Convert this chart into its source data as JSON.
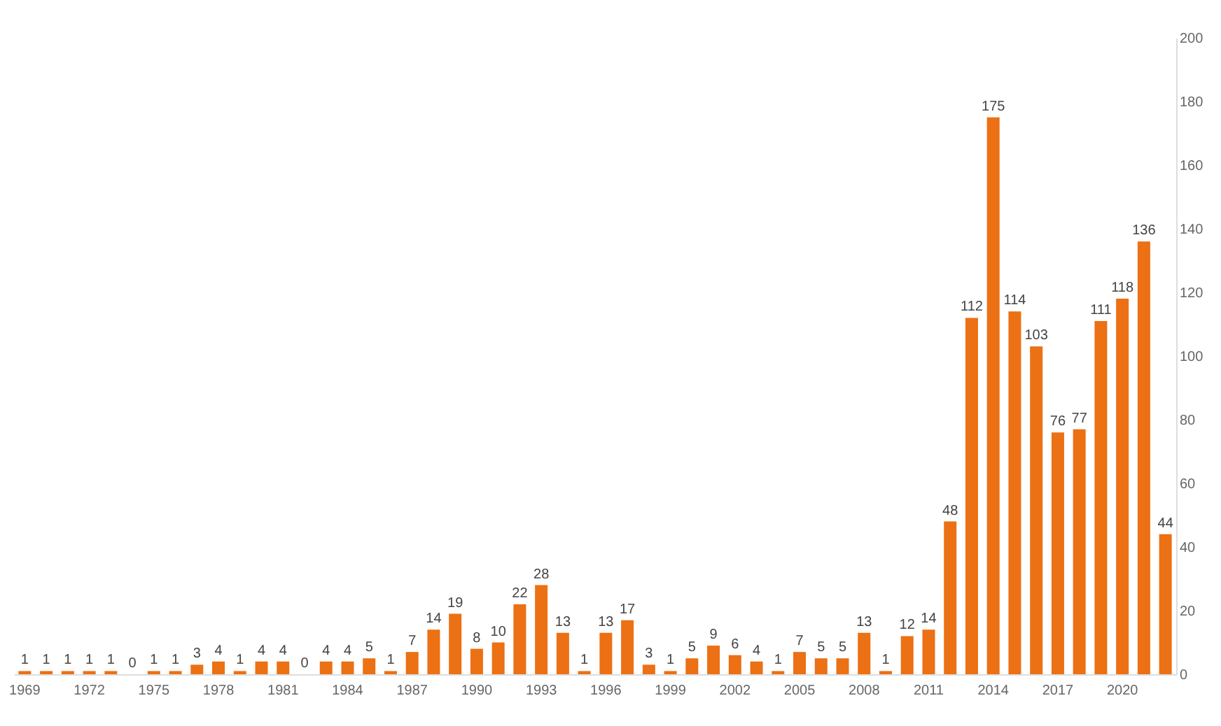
{
  "chart_data": {
    "type": "bar",
    "categories": [
      "1969",
      null,
      null,
      "1972",
      null,
      null,
      "1975",
      null,
      null,
      "1978",
      null,
      null,
      "1981",
      null,
      null,
      "1984",
      null,
      null,
      "1987",
      null,
      null,
      "1990",
      null,
      null,
      "1993",
      null,
      null,
      "1996",
      null,
      null,
      "1999",
      null,
      null,
      "2002",
      null,
      null,
      "2005",
      null,
      null,
      "2008",
      null,
      null,
      "2011",
      null,
      null,
      "2014",
      null,
      null,
      "2017",
      null,
      null,
      "2020",
      null,
      null
    ],
    "values": [
      1,
      1,
      1,
      1,
      1,
      0,
      1,
      1,
      3,
      4,
      1,
      4,
      4,
      0,
      4,
      4,
      5,
      1,
      7,
      14,
      19,
      8,
      10,
      22,
      28,
      13,
      1,
      13,
      17,
      3,
      1,
      5,
      9,
      6,
      4,
      1,
      7,
      5,
      5,
      13,
      1,
      12,
      14,
      48,
      112,
      175,
      114,
      103,
      76,
      77,
      111,
      118,
      136,
      44
    ],
    "color": "#ec7014",
    "ylim": [
      0,
      200
    ],
    "yticks": [
      0,
      20,
      40,
      60,
      80,
      100,
      120,
      140,
      160,
      180,
      200
    ],
    "data_labels": true,
    "grid": false
  }
}
